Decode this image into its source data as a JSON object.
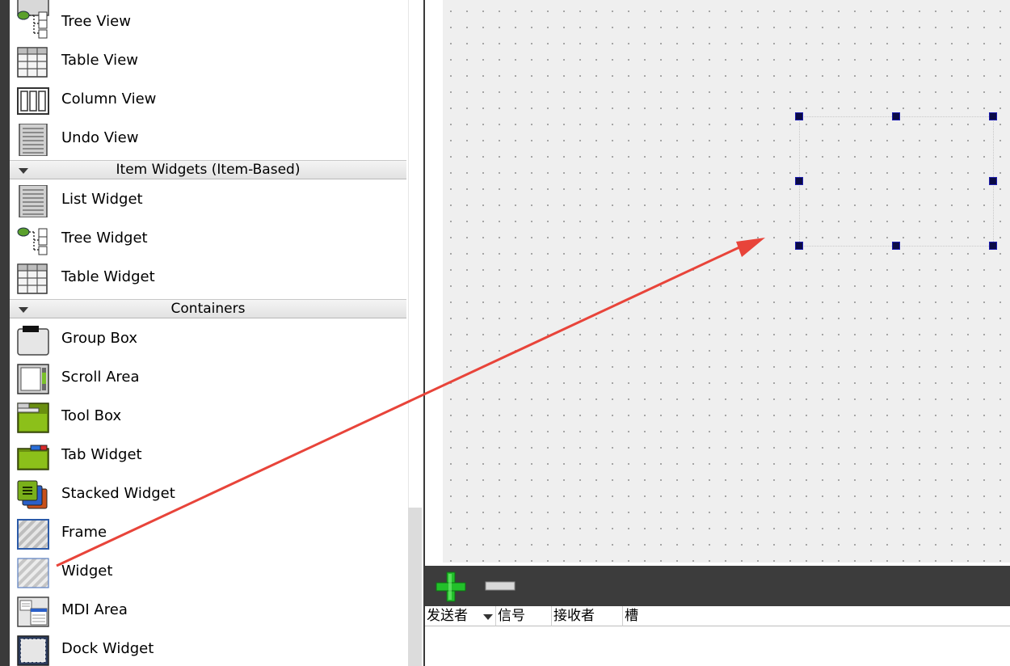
{
  "widget_box": {
    "items_top": [
      {
        "label": "Tree View",
        "icon": "tree-view-icon"
      },
      {
        "label": "Table View",
        "icon": "table-view-icon"
      },
      {
        "label": "Column View",
        "icon": "column-view-icon"
      },
      {
        "label": "Undo View",
        "icon": "undo-view-icon"
      }
    ],
    "category_item_widgets": "Item Widgets (Item-Based)",
    "item_widgets": [
      {
        "label": "List Widget",
        "icon": "list-widget-icon"
      },
      {
        "label": "Tree Widget",
        "icon": "tree-widget-icon"
      },
      {
        "label": "Table Widget",
        "icon": "table-widget-icon"
      }
    ],
    "category_containers": "Containers",
    "containers": [
      {
        "label": "Group Box",
        "icon": "group-box-icon"
      },
      {
        "label": "Scroll Area",
        "icon": "scroll-area-icon"
      },
      {
        "label": "Tool Box",
        "icon": "tool-box-icon"
      },
      {
        "label": "Tab Widget",
        "icon": "tab-widget-icon"
      },
      {
        "label": "Stacked Widget",
        "icon": "stacked-widget-icon"
      },
      {
        "label": "Frame",
        "icon": "frame-icon"
      },
      {
        "label": "Widget",
        "icon": "widget-icon"
      },
      {
        "label": "MDI Area",
        "icon": "mdi-area-icon"
      },
      {
        "label": "Dock Widget",
        "icon": "dock-widget-icon"
      }
    ]
  },
  "signal_slot_editor": {
    "add_icon": "plus-icon",
    "remove_icon": "minus-icon",
    "columns": [
      "发送者",
      "信号",
      "接收者",
      "槽"
    ]
  },
  "colors": {
    "annotation_arrow": "#e8443a",
    "selection_handle": "#0a0a46",
    "toolbar_bg": "#3c3c3c",
    "canvas_bg": "#efefef"
  }
}
